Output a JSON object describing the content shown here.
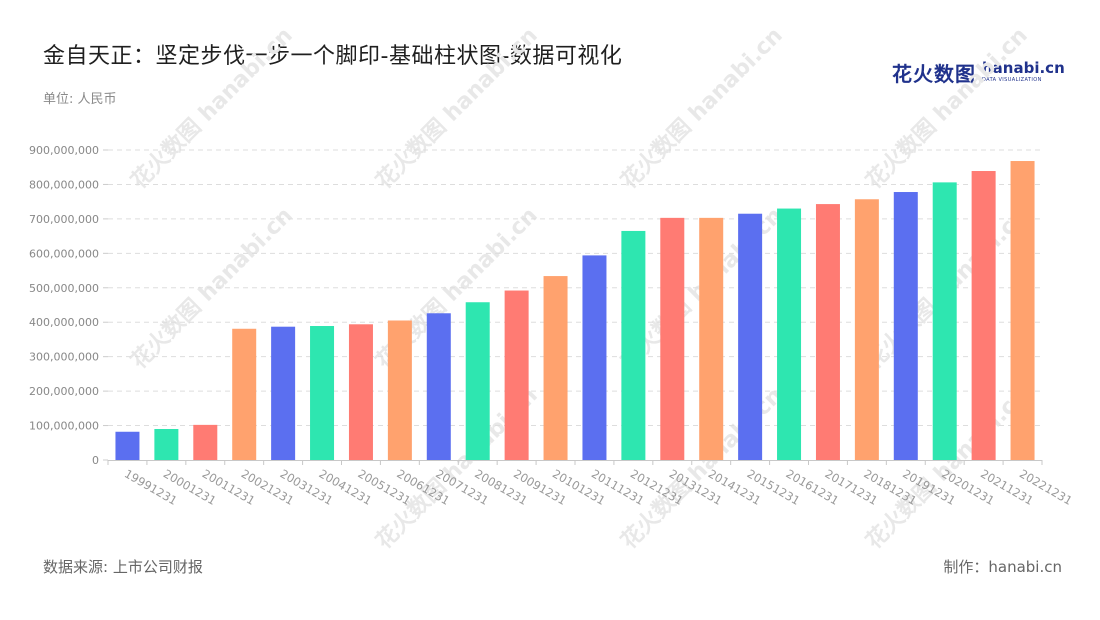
{
  "header": {
    "title": "金自天正：坚定步伐一步一个脚印-基础柱状图-数据可视化",
    "unit": "单位: 人民币"
  },
  "logo": {
    "cn": "花火数图",
    "en": "hanabi.cn",
    "sub": "DATA VISUALIZATION"
  },
  "watermark": {
    "text": "花火数图 hanabi.cn"
  },
  "footer": {
    "source": "数据来源: 上市公司财报",
    "maker": "制作：hanabi.cn"
  },
  "colors": [
    "#5b6ff0",
    "#2ee6b0",
    "#ff7b73",
    "#ffa26e"
  ],
  "chart_data": {
    "type": "bar",
    "title": "金自天正：坚定步伐一步一个脚印-基础柱状图-数据可视化",
    "ylabel": "单位: 人民币",
    "xlabel": "",
    "grid": true,
    "ylim": [
      0,
      900000000
    ],
    "yticks": [
      0,
      100000000,
      200000000,
      300000000,
      400000000,
      500000000,
      600000000,
      700000000,
      800000000,
      900000000
    ],
    "ytick_labels": [
      "0",
      "100,000,000",
      "200,000,000",
      "300,000,000",
      "400,000,000",
      "500,000,000",
      "600,000,000",
      "700,000,000",
      "800,000,000",
      "900,000,000"
    ],
    "categories": [
      "19991231",
      "20001231",
      "20011231",
      "20021231",
      "20031231",
      "20041231",
      "20051231",
      "20061231",
      "20071231",
      "20081231",
      "20091231",
      "20101231",
      "20111231",
      "20121231",
      "20131231",
      "20141231",
      "20151231",
      "20161231",
      "20171231",
      "20181231",
      "20191231",
      "20201231",
      "20211231",
      "20221231"
    ],
    "values": [
      82000000,
      90000000,
      102000000,
      381000000,
      387000000,
      389000000,
      394000000,
      405000000,
      426000000,
      458000000,
      492000000,
      534000000,
      594000000,
      665000000,
      703000000,
      703000000,
      715000000,
      730000000,
      743000000,
      757000000,
      778000000,
      806000000,
      839000000,
      868000000
    ]
  }
}
